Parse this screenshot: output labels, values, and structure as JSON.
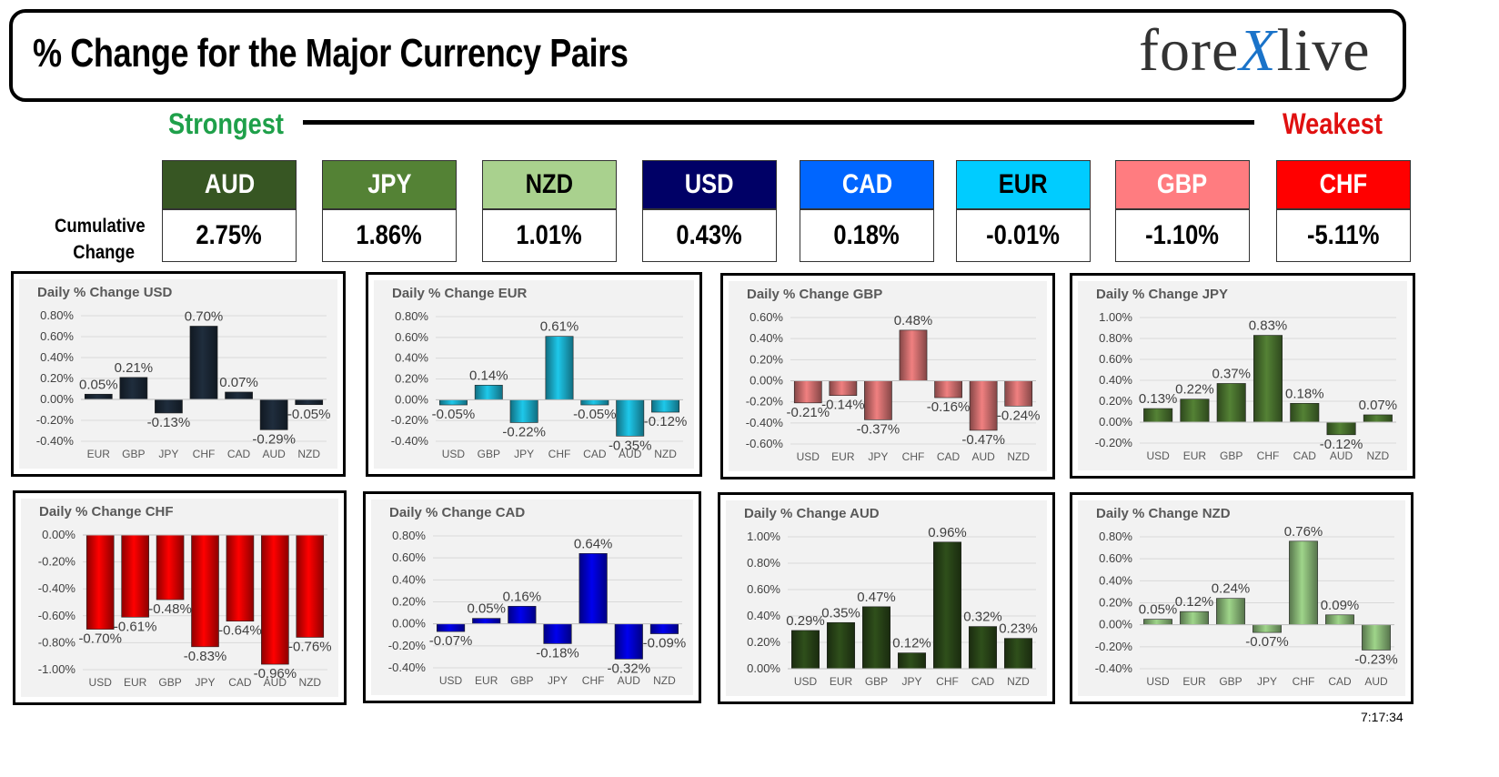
{
  "header": {
    "title": "% Change for the Major Currency Pairs",
    "logo_left": "fore",
    "logo_x": "X",
    "logo_right": "live"
  },
  "scale": {
    "strongest": "Strongest",
    "weakest": "Weakest"
  },
  "cumulative": {
    "label_line1": "Cumulative",
    "label_line2": "Change",
    "items": [
      {
        "currency": "AUD",
        "value": "2.75%",
        "bg": "#375623",
        "fg": "#ffffff"
      },
      {
        "currency": "JPY",
        "value": "1.86%",
        "bg": "#548235",
        "fg": "#ffffff"
      },
      {
        "currency": "NZD",
        "value": "1.01%",
        "bg": "#a9d18e",
        "fg": "#000000"
      },
      {
        "currency": "USD",
        "value": "0.43%",
        "bg": "#000066",
        "fg": "#ffffff"
      },
      {
        "currency": "CAD",
        "value": "0.18%",
        "bg": "#0066ff",
        "fg": "#ffffff"
      },
      {
        "currency": "EUR",
        "value": "-0.01%",
        "bg": "#00ccff",
        "fg": "#000000"
      },
      {
        "currency": "GBP",
        "value": "-1.10%",
        "bg": "#ff7c80",
        "fg": "#ffffff"
      },
      {
        "currency": "CHF",
        "value": "-5.11%",
        "bg": "#ff0000",
        "fg": "#ffffff"
      }
    ]
  },
  "chart_data": [
    {
      "type": "bar",
      "title": "Daily % Change USD",
      "categories": [
        "EUR",
        "GBP",
        "JPY",
        "CHF",
        "CAD",
        "AUD",
        "NZD"
      ],
      "values": [
        0.05,
        0.21,
        -0.13,
        0.7,
        0.07,
        -0.29,
        -0.05
      ],
      "labels": [
        "0.05%",
        "0.21%",
        "-0.13%",
        "0.70%",
        "0.07%",
        "-0.29%",
        "-0.05%"
      ],
      "ylim": [
        -0.4,
        0.8
      ],
      "yticks": [
        "0.80%",
        "0.60%",
        "0.40%",
        "0.20%",
        "0.00%",
        "-0.20%",
        "-0.40%"
      ],
      "color": "#1f2d3d",
      "grid": true
    },
    {
      "type": "bar",
      "title": "Daily % Change EUR",
      "categories": [
        "USD",
        "GBP",
        "JPY",
        "CHF",
        "CAD",
        "AUD",
        "NZD"
      ],
      "values": [
        -0.05,
        0.14,
        -0.22,
        0.61,
        -0.05,
        -0.35,
        -0.12
      ],
      "labels": [
        "-0.05%",
        "0.14%",
        "-0.22%",
        "0.61%",
        "-0.05%",
        "-0.35%",
        "-0.12%"
      ],
      "ylim": [
        -0.4,
        0.8
      ],
      "yticks": [
        "0.80%",
        "0.60%",
        "0.40%",
        "0.20%",
        "0.00%",
        "-0.20%",
        "-0.40%"
      ],
      "color": "#1ec8ea",
      "grid": true
    },
    {
      "type": "bar",
      "title": "Daily % Change GBP",
      "categories": [
        "USD",
        "EUR",
        "JPY",
        "CHF",
        "CAD",
        "AUD",
        "NZD"
      ],
      "values": [
        -0.21,
        -0.14,
        -0.37,
        0.48,
        -0.16,
        -0.47,
        -0.24
      ],
      "labels": [
        "-0.21%",
        "-0.14%",
        "-0.37%",
        "0.48%",
        "-0.16%",
        "-0.47%",
        "-0.24%"
      ],
      "ylim": [
        -0.6,
        0.6
      ],
      "yticks": [
        "0.60%",
        "0.40%",
        "0.20%",
        "0.00%",
        "-0.20%",
        "-0.40%",
        "-0.60%"
      ],
      "color": "#f08080",
      "grid": true
    },
    {
      "type": "bar",
      "title": "Daily % Change JPY",
      "categories": [
        "USD",
        "EUR",
        "GBP",
        "CHF",
        "CAD",
        "AUD",
        "NZD"
      ],
      "values": [
        0.13,
        0.22,
        0.37,
        0.83,
        0.18,
        -0.12,
        0.07
      ],
      "labels": [
        "0.13%",
        "0.22%",
        "0.37%",
        "0.83%",
        "0.18%",
        "-0.12%",
        "0.07%"
      ],
      "ylim": [
        -0.2,
        1.0
      ],
      "yticks": [
        "1.00%",
        "0.80%",
        "0.60%",
        "0.40%",
        "0.20%",
        "0.00%",
        "-0.20%"
      ],
      "color": "#548235",
      "grid": true
    },
    {
      "type": "bar",
      "title": "Daily % Change CHF",
      "categories": [
        "USD",
        "EUR",
        "GBP",
        "JPY",
        "CAD",
        "AUD",
        "NZD"
      ],
      "values": [
        -0.7,
        -0.61,
        -0.48,
        -0.83,
        -0.64,
        -0.96,
        -0.76
      ],
      "labels": [
        "-0.70%",
        "-0.61%",
        "-0.48%",
        "-0.83%",
        "-0.64%",
        "-0.96%",
        "-0.76%"
      ],
      "ylim": [
        -1.0,
        0.0
      ],
      "yticks": [
        "0.00%",
        "-0.20%",
        "-0.40%",
        "-0.60%",
        "-0.80%",
        "-1.00%"
      ],
      "color": "#ff0000",
      "grid": true
    },
    {
      "type": "bar",
      "title": "Daily % Change CAD",
      "categories": [
        "USD",
        "EUR",
        "GBP",
        "JPY",
        "CHF",
        "AUD",
        "NZD"
      ],
      "values": [
        -0.07,
        0.05,
        0.16,
        -0.18,
        0.64,
        -0.32,
        -0.09
      ],
      "labels": [
        "-0.07%",
        "0.05%",
        "0.16%",
        "-0.18%",
        "0.64%",
        "-0.32%",
        "-0.09%"
      ],
      "ylim": [
        -0.4,
        0.8
      ],
      "yticks": [
        "0.80%",
        "0.60%",
        "0.40%",
        "0.20%",
        "0.00%",
        "-0.20%",
        "-0.40%"
      ],
      "color": "#0000ee",
      "grid": true
    },
    {
      "type": "bar",
      "title": "Daily % Change AUD",
      "categories": [
        "USD",
        "EUR",
        "GBP",
        "JPY",
        "CHF",
        "CAD",
        "NZD"
      ],
      "values": [
        0.29,
        0.35,
        0.47,
        0.12,
        0.96,
        0.32,
        0.23
      ],
      "labels": [
        "0.29%",
        "0.35%",
        "0.47%",
        "0.12%",
        "0.96%",
        "0.32%",
        "0.23%"
      ],
      "ylim": [
        0.0,
        1.0
      ],
      "yticks": [
        "1.00%",
        "0.80%",
        "0.60%",
        "0.40%",
        "0.20%",
        "0.00%"
      ],
      "color": "#2f4f1b",
      "grid": true
    },
    {
      "type": "bar",
      "title": "Daily % Change NZD",
      "categories": [
        "USD",
        "EUR",
        "GBP",
        "JPY",
        "CHF",
        "CAD",
        "AUD"
      ],
      "values": [
        0.05,
        0.12,
        0.24,
        -0.07,
        0.76,
        0.09,
        -0.23
      ],
      "labels": [
        "0.05%",
        "0.12%",
        "0.24%",
        "-0.07%",
        "0.76%",
        "0.09%",
        "-0.23%"
      ],
      "ylim": [
        -0.4,
        0.8
      ],
      "yticks": [
        "0.80%",
        "0.60%",
        "0.40%",
        "0.20%",
        "0.00%",
        "-0.20%",
        "-0.40%"
      ],
      "color": "#9fd58a",
      "grid": true
    }
  ],
  "footer": {
    "time": "7:17:34"
  }
}
